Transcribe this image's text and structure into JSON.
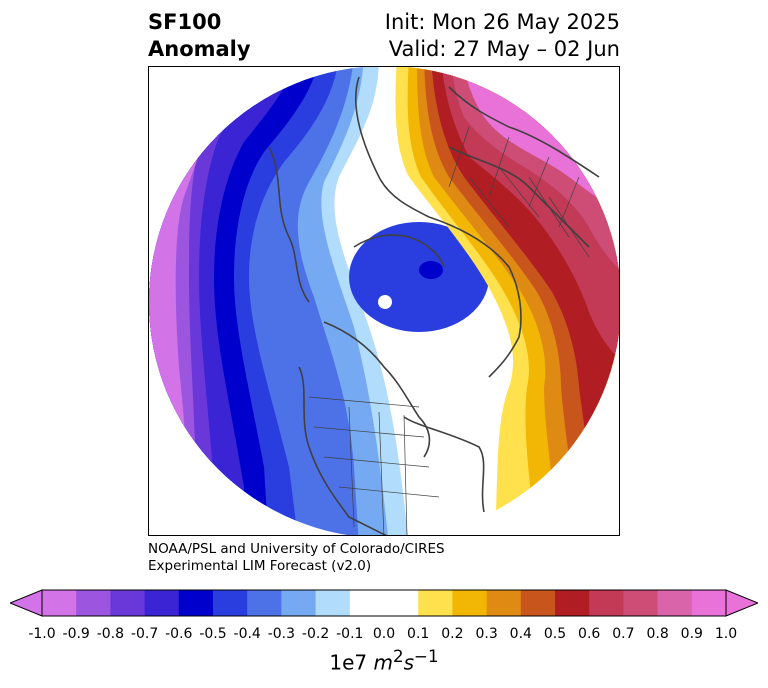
{
  "title": {
    "variable": "SF100",
    "subtitle": "Anomaly",
    "init": "Init: Mon 26 May 2025",
    "valid": "Valid: 27 May – 02 Jun"
  },
  "credit": {
    "line1": "NOAA/PSL and University of Colorado/CIRES",
    "line2": "Experimental LIM Forecast (v2.0)"
  },
  "colorbar": {
    "ticks": [
      "-1.0",
      "-0.9",
      "-0.8",
      "-0.7",
      "-0.6",
      "-0.5",
      "-0.4",
      "-0.3",
      "-0.2",
      "-0.1",
      "0.0",
      "0.1",
      "0.2",
      "0.3",
      "0.4",
      "0.5",
      "0.6",
      "0.7",
      "0.8",
      "0.9",
      "1.0"
    ],
    "colors": [
      "#d273e8",
      "#9b55df",
      "#6a38d9",
      "#3a24d4",
      "#0000cc",
      "#2a3ee0",
      "#4d72e8",
      "#75aaf2",
      "#b1dcfb",
      "#ffffff",
      "#ffffff",
      "#ffe14d",
      "#f2b705",
      "#df8a12",
      "#c8561c",
      "#b01e24",
      "#c23a56",
      "#cd4d76",
      "#d964aa",
      "#e872d8"
    ],
    "extend_under": "#d273e8",
    "extend_over": "#e872d8",
    "unit_base": "1e7",
    "unit_m": "m",
    "unit_m_exp": "2",
    "unit_s": "s",
    "unit_s_exp": "−1"
  },
  "map": {
    "projection": "north-polar-stereographic",
    "field": "streamfunction anomaly 100 hPa"
  }
}
